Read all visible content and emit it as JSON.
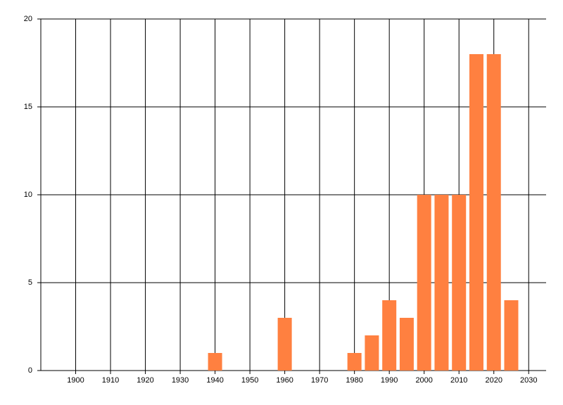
{
  "chart_data": {
    "type": "bar",
    "x": [
      1940,
      1960,
      1980,
      1985,
      1990,
      1995,
      2000,
      2005,
      2010,
      2015,
      2020,
      2025
    ],
    "values": [
      1,
      3,
      1,
      2,
      4,
      3,
      10,
      10,
      10,
      18,
      18,
      4
    ],
    "color": "#ff8040",
    "xlim": [
      1890,
      2035
    ],
    "xticks": [
      1900,
      1910,
      1920,
      1930,
      1940,
      1950,
      1960,
      1970,
      1980,
      1990,
      2000,
      2010,
      2020,
      2030
    ],
    "ylim": [
      0,
      20
    ],
    "yticks": [
      0,
      5,
      10,
      15,
      20
    ],
    "grid": true
  }
}
